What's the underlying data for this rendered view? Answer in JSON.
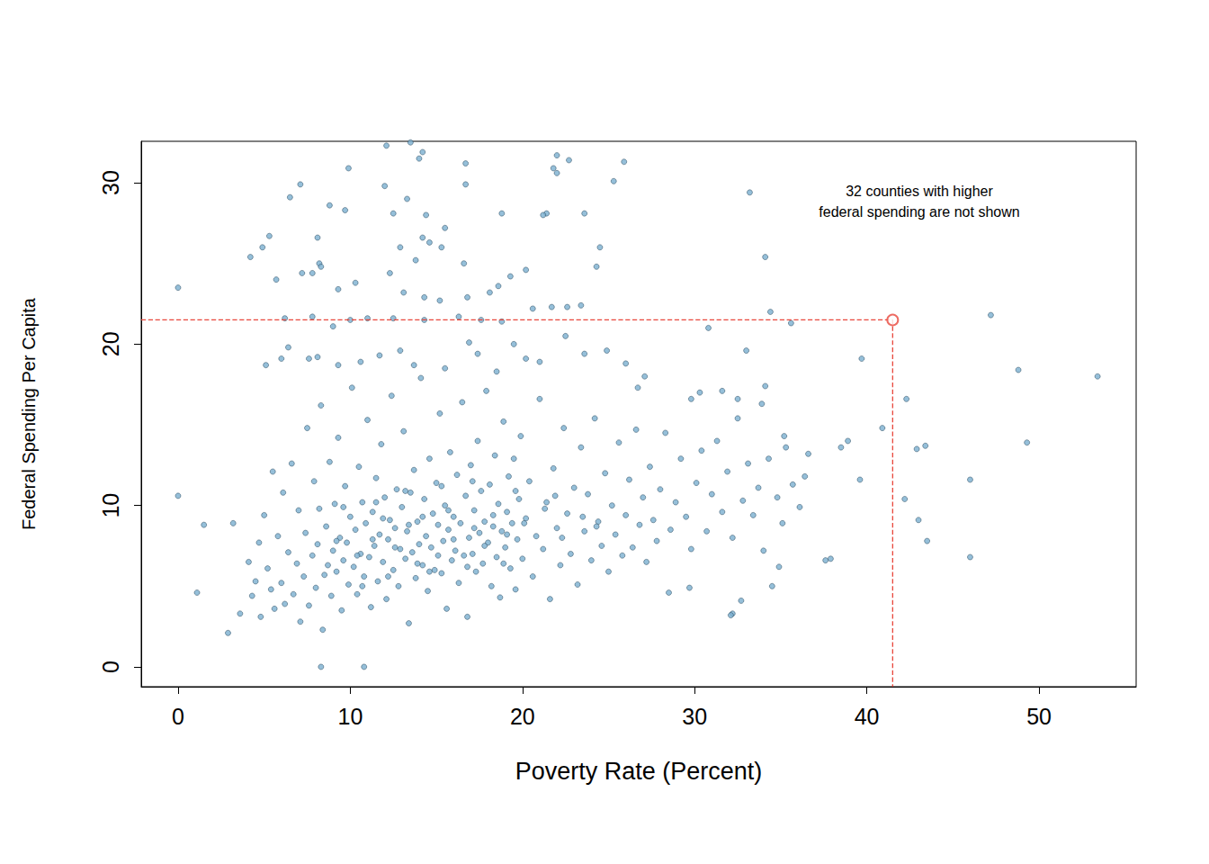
{
  "chart_data": {
    "type": "scatter",
    "x_label": "Poverty Rate (Percent)",
    "y_label": "Federal Spending Per Capita",
    "annotation": [
      "32 counties with higher",
      "federal spending are not shown"
    ],
    "xlim": [
      -2.14,
      55.64
    ],
    "ylim": [
      -1.23,
      32.57
    ],
    "xticks": [
      0,
      10,
      20,
      30,
      40,
      50
    ],
    "yticks": [
      0,
      10,
      20,
      30
    ],
    "grid": false,
    "color": "#7bafd0",
    "marker": "circle",
    "highlight": {
      "x": 41.5,
      "y": 21.5,
      "color": "#e8473c",
      "line_style": "dashed",
      "marker": "emptyCircle"
    },
    "x": [
      0,
      0,
      1.1,
      1.5,
      2.9,
      3.2,
      3.6,
      8.3,
      10.8,
      12.1,
      13.5,
      14.2,
      14,
      16.7,
      22,
      22.7,
      21.8,
      22,
      25.9,
      25.3,
      9.9,
      7.1,
      6.5,
      12,
      16.7,
      13.3,
      8.8,
      9.7,
      12.5,
      14.4,
      18.8,
      21.4,
      21.2,
      23.6,
      15.5,
      4.9,
      5.3,
      4.2,
      8.1,
      14.2,
      12.9,
      15.3,
      14.6,
      16.6,
      13.8,
      24.5,
      24.3,
      8.2,
      8.3,
      5.7,
      7.2,
      7.8,
      9.3,
      10.3,
      12.3,
      13.1,
      14.3,
      15.2,
      16.8,
      18.1,
      18.6,
      19.3,
      20.2,
      21.7,
      22.6,
      20.6,
      23.4,
      33.2,
      34.1,
      34.4,
      35.6,
      30.8,
      33,
      39.7,
      47.2,
      48.8,
      53.4,
      49.3,
      42.3,
      40.9,
      38.9,
      38.5,
      42.9,
      43.4,
      39.6,
      42.2,
      43,
      43.5,
      46,
      46,
      37.6,
      37.9,
      34.5,
      34.9,
      32.2,
      32.1,
      32.7,
      28.5,
      29.7,
      35.1,
      36.4,
      36.6,
      35.3,
      34.1,
      33.9,
      32.5,
      31.6,
      30.3,
      29.8,
      26.7,
      27.1,
      26,
      24.9,
      23.6,
      22.5,
      21,
      20.2,
      19.5,
      18.8,
      17.6,
      16.3,
      14.3,
      12.5,
      11,
      10,
      9,
      7.8,
      6.2,
      6,
      5.1,
      6.4,
      8.1,
      7.6,
      9.3,
      10.6,
      11.7,
      12.9,
      13.7,
      15.5,
      16.9,
      17.4,
      18.5,
      4.1,
      4.3,
      4.5,
      4.7,
      4.8,
      5.0,
      5.2,
      5.4,
      5.5,
      5.6,
      5.8,
      6.0,
      6.1,
      6.2,
      6.4,
      6.6,
      6.7,
      6.9,
      7.0,
      7.1,
      7.3,
      7.4,
      7.5,
      7.6,
      7.8,
      7.9,
      8.0,
      8.1,
      8.2,
      8.3,
      8.4,
      8.5,
      8.6,
      8.7,
      8.8,
      8.9,
      9.0,
      9.1,
      9.2,
      9.3,
      9.4,
      9.5,
      9.6,
      9.7,
      9.8,
      9.9,
      10.0,
      10.1,
      10.2,
      10.3,
      10.4,
      10.5,
      10.6,
      10.7,
      10.8,
      10.9,
      11.0,
      11.1,
      11.2,
      11.3,
      11.4,
      11.5,
      11.6,
      11.7,
      11.8,
      11.9,
      12.0,
      12.1,
      12.2,
      12.3,
      12.4,
      12.5,
      12.6,
      12.7,
      12.8,
      12.9,
      13.0,
      13.1,
      13.2,
      13.3,
      13.4,
      13.5,
      13.6,
      13.7,
      13.8,
      13.9,
      14.0,
      14.1,
      14.2,
      14.3,
      14.4,
      14.5,
      14.6,
      14.7,
      14.8,
      14.9,
      15.0,
      15.1,
      15.2,
      15.3,
      15.4,
      15.5,
      15.6,
      15.7,
      15.8,
      15.9,
      16.0,
      16.1,
      16.2,
      16.3,
      16.4,
      16.5,
      16.6,
      16.7,
      16.8,
      16.9,
      17.0,
      17.1,
      17.2,
      17.3,
      17.4,
      17.5,
      17.6,
      17.7,
      17.8,
      17.9,
      18.0,
      18.1,
      18.2,
      18.3,
      18.4,
      18.5,
      18.6,
      18.7,
      18.8,
      18.9,
      19.0,
      19.1,
      19.2,
      19.3,
      19.4,
      19.5,
      19.6,
      19.7,
      19.8,
      19.9,
      20.0,
      20.2,
      20.4,
      20.6,
      20.8,
      21.0,
      21.2,
      21.4,
      21.6,
      21.8,
      22.0,
      22.2,
      22.4,
      22.6,
      22.8,
      23.0,
      23.2,
      23.4,
      23.6,
      23.8,
      24.0,
      24.2,
      24.4,
      24.6,
      24.8,
      25.0,
      25.2,
      25.4,
      25.6,
      25.8,
      26.0,
      26.2,
      26.4,
      26.6,
      26.8,
      27.0,
      27.2,
      27.4,
      27.6,
      27.8,
      28.0,
      28.3,
      28.6,
      28.9,
      29.2,
      29.5,
      29.8,
      30.1,
      30.4,
      30.7,
      31.0,
      31.3,
      31.6,
      31.9,
      32.2,
      32.5,
      32.8,
      33.1,
      33.4,
      33.7,
      34.0,
      34.3,
      34.8,
      35.2,
      35.7,
      36.1,
      9.2,
      10.4,
      11.3,
      12.6,
      13.4,
      14.2,
      15.1,
      16.0,
      17.2,
      18.3,
      19.1,
      11.9,
      13.9,
      15.7,
      17.8,
      20.1,
      21.3,
      22.3,
      23.5,
      24.3,
      10.7,
      12.2,
      14.6,
      16.8,
      18.9,
      9.6,
      11.5,
      13.2,
      15.3,
      17.1,
      19.6,
      21.9
    ],
    "values": [
      23.5,
      10.6,
      4.6,
      8.8,
      2.1,
      8.9,
      3.3,
      0,
      0,
      32.3,
      32.5,
      31.9,
      31.5,
      31.2,
      31.7,
      31.4,
      30.9,
      30.6,
      31.3,
      30.1,
      30.9,
      29.9,
      29.1,
      29.8,
      29.9,
      29,
      28.6,
      28.3,
      28.1,
      28,
      28.1,
      28.1,
      28,
      28.1,
      27.2,
      26,
      26.7,
      25.4,
      26.6,
      26.6,
      26,
      26,
      26.3,
      25,
      25.2,
      26,
      24.8,
      25,
      24.8,
      24,
      24.4,
      24.4,
      23.4,
      23.8,
      24.4,
      23.2,
      22.9,
      22.7,
      22.9,
      23.2,
      23.6,
      24.2,
      24.6,
      22.3,
      22.3,
      22.2,
      22.4,
      29.4,
      25.4,
      22,
      21.3,
      21,
      19.6,
      19.1,
      21.8,
      18.4,
      18,
      13.9,
      16.6,
      14.8,
      14,
      13.6,
      13.5,
      13.7,
      11.6,
      10.4,
      9.1,
      7.8,
      11.6,
      6.8,
      6.6,
      6.7,
      5,
      6.2,
      3.3,
      3.2,
      4.1,
      4.6,
      4.9,
      8.9,
      11.8,
      13.2,
      13.6,
      17.4,
      16.3,
      16.6,
      17.1,
      17,
      16.6,
      17.3,
      18,
      18.8,
      19.6,
      19.4,
      20.5,
      18.9,
      19.1,
      20,
      21.4,
      21.5,
      21.7,
      21.5,
      21.6,
      21.6,
      21.5,
      21.1,
      21.7,
      21.6,
      19.1,
      18.7,
      19.8,
      19.2,
      19.1,
      18.7,
      18.9,
      19.3,
      19.6,
      18.7,
      18.5,
      20.1,
      19.4,
      18.3,
      6.5,
      4.4,
      5.3,
      7.7,
      3.1,
      9.4,
      6.1,
      4.8,
      12.1,
      3.6,
      8.1,
      5.2,
      10.8,
      3.9,
      7.1,
      12.6,
      4.5,
      6.4,
      9.7,
      2.8,
      5.6,
      8.3,
      14.8,
      3.8,
      6.9,
      11.5,
      4.9,
      7.6,
      9.8,
      16.2,
      2.3,
      5.7,
      8.7,
      6.3,
      12.7,
      4.4,
      7.2,
      10.1,
      5.9,
      14.2,
      8.0,
      3.5,
      6.6,
      11.2,
      7.7,
      5.1,
      9.3,
      17.3,
      6.2,
      8.5,
      4.5,
      12.4,
      7.0,
      10.2,
      5.6,
      8.9,
      15.3,
      6.8,
      3.7,
      9.6,
      7.5,
      11.7,
      5.3,
      8.2,
      13.8,
      6.5,
      10.5,
      4.2,
      7.9,
      9.1,
      16.8,
      6.0,
      8.6,
      11.0,
      5.0,
      7.3,
      9.9,
      14.6,
      6.7,
      8.4,
      2.7,
      10.8,
      7.1,
      12.2,
      5.5,
      9.0,
      7.6,
      17.9,
      6.3,
      10.4,
      8.1,
      4.7,
      12.9,
      7.4,
      9.5,
      6.0,
      11.4,
      8.8,
      15.7,
      5.8,
      7.8,
      10.0,
      3.6,
      8.5,
      13.3,
      6.6,
      9.3,
      7.2,
      11.9,
      5.2,
      8.9,
      16.4,
      6.9,
      10.6,
      3.1,
      8.0,
      12.5,
      7.0,
      9.7,
      5.9,
      14.0,
      8.3,
      10.9,
      6.4,
      9.0,
      17.1,
      7.7,
      11.3,
      5.0,
      8.7,
      13.1,
      6.8,
      10.1,
      4.3,
      8.4,
      15.2,
      7.4,
      9.6,
      11.8,
      6.1,
      8.9,
      12.9,
      4.8,
      7.9,
      10.4,
      14.3,
      6.7,
      9.2,
      11.5,
      5.6,
      8.1,
      16.6,
      7.3,
      10.2,
      4.2,
      12.3,
      8.6,
      6.3,
      14.8,
      9.5,
      7.0,
      11.1,
      5.1,
      13.6,
      8.4,
      10.7,
      6.6,
      15.4,
      9.0,
      7.5,
      12.0,
      5.9,
      10.0,
      8.2,
      13.9,
      6.9,
      9.4,
      11.6,
      7.4,
      14.7,
      8.8,
      10.5,
      6.5,
      12.4,
      9.1,
      7.8,
      11.0,
      14.5,
      8.5,
      10.2,
      12.9,
      9.3,
      7.3,
      11.4,
      13.4,
      8.4,
      10.7,
      14.0,
      9.6,
      12.1,
      8.0,
      15.4,
      10.3,
      12.6,
      9.4,
      11.1,
      7.2,
      12.9,
      10.5,
      14.3,
      11.3,
      9.9,
      7.8,
      6.9,
      7.9,
      7.4,
      8.8,
      9.3,
      6.9,
      7.9,
      8.6,
      9.4,
      8.2,
      9.2,
      6.4,
      9.7,
      7.5,
      8.9,
      9.8,
      8.0,
      9.3,
      8.7,
      5.0,
      5.6,
      5.9,
      6.2,
      6.4,
      9.9,
      10.2,
      10.9,
      11.2,
      11.5,
      10.9,
      10.6
    ]
  }
}
